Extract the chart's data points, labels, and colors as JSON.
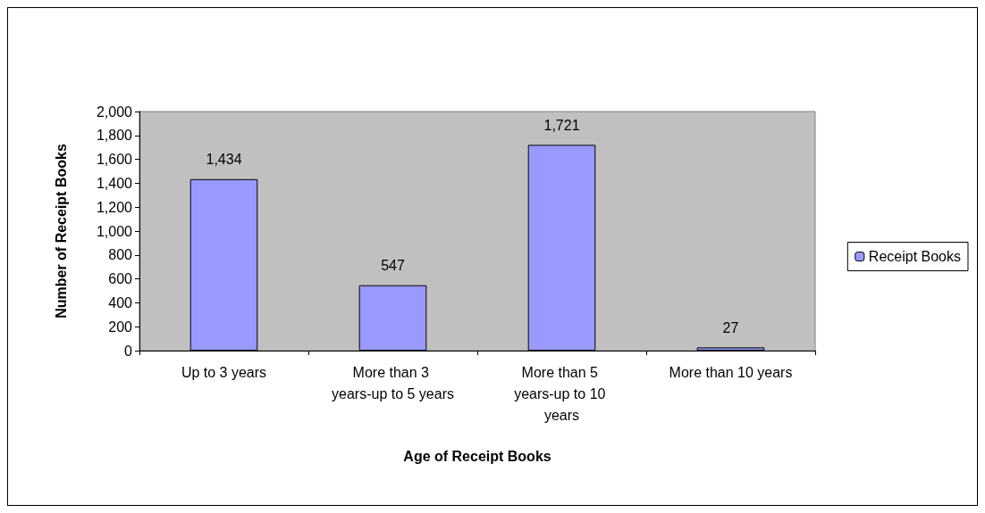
{
  "chart_data": {
    "type": "bar",
    "xlabel": "Age of Receipt Books",
    "ylabel": "Number of Receipt Books",
    "categories": [
      "Up to 3 years",
      "More than 3 years-up to 5 years",
      "More than 5 years-up to 10 years",
      "More than 10 years"
    ],
    "series": [
      {
        "name": "Receipt Books",
        "color": "#9999ff",
        "values": [
          1434,
          547,
          1721,
          27
        ],
        "value_labels": [
          "1,434",
          "547",
          "1,721",
          "27"
        ]
      }
    ],
    "ylim": [
      0,
      2000
    ],
    "yticks": [
      {
        "value": 0,
        "label": "0"
      },
      {
        "value": 200,
        "label": "200"
      },
      {
        "value": 400,
        "label": "400"
      },
      {
        "value": 600,
        "label": "600"
      },
      {
        "value": 800,
        "label": "800"
      },
      {
        "value": 1000,
        "label": "1,000"
      },
      {
        "value": 1200,
        "label": "1,200"
      },
      {
        "value": 1400,
        "label": "1,400"
      },
      {
        "value": 1600,
        "label": "1,600"
      },
      {
        "value": 1800,
        "label": "1,800"
      },
      {
        "value": 2000,
        "label": "2,000"
      }
    ],
    "grid": false,
    "legend": "right"
  }
}
